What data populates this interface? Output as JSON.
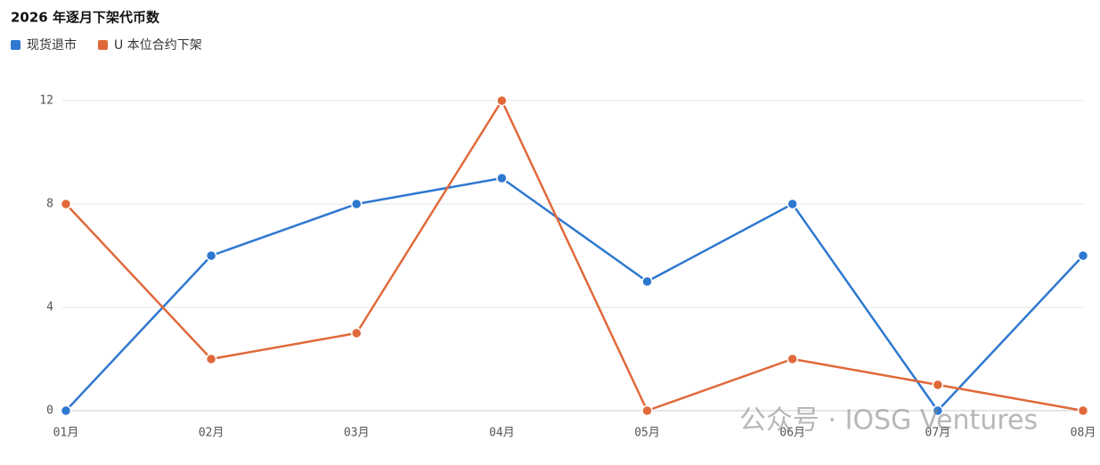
{
  "chart_data": {
    "type": "line",
    "title": "2026 年逐月下架代币数",
    "categories": [
      "01月",
      "02月",
      "03月",
      "04月",
      "05月",
      "06月",
      "07月",
      "08月"
    ],
    "series": [
      {
        "name": "现货退市",
        "color": "#2f78d0",
        "values": [
          0,
          6,
          8,
          9,
          5,
          8,
          0,
          6
        ]
      },
      {
        "name": "U 本位合约下架",
        "color": "#e0693a",
        "values": [
          8,
          2,
          3,
          12,
          0,
          2,
          1,
          0
        ]
      }
    ],
    "ylim": [
      0,
      12
    ],
    "yticks": [
      0,
      4,
      8,
      12
    ],
    "grid": true,
    "legend": "top-left",
    "watermark": "公众号 · IOSG Ventures"
  }
}
